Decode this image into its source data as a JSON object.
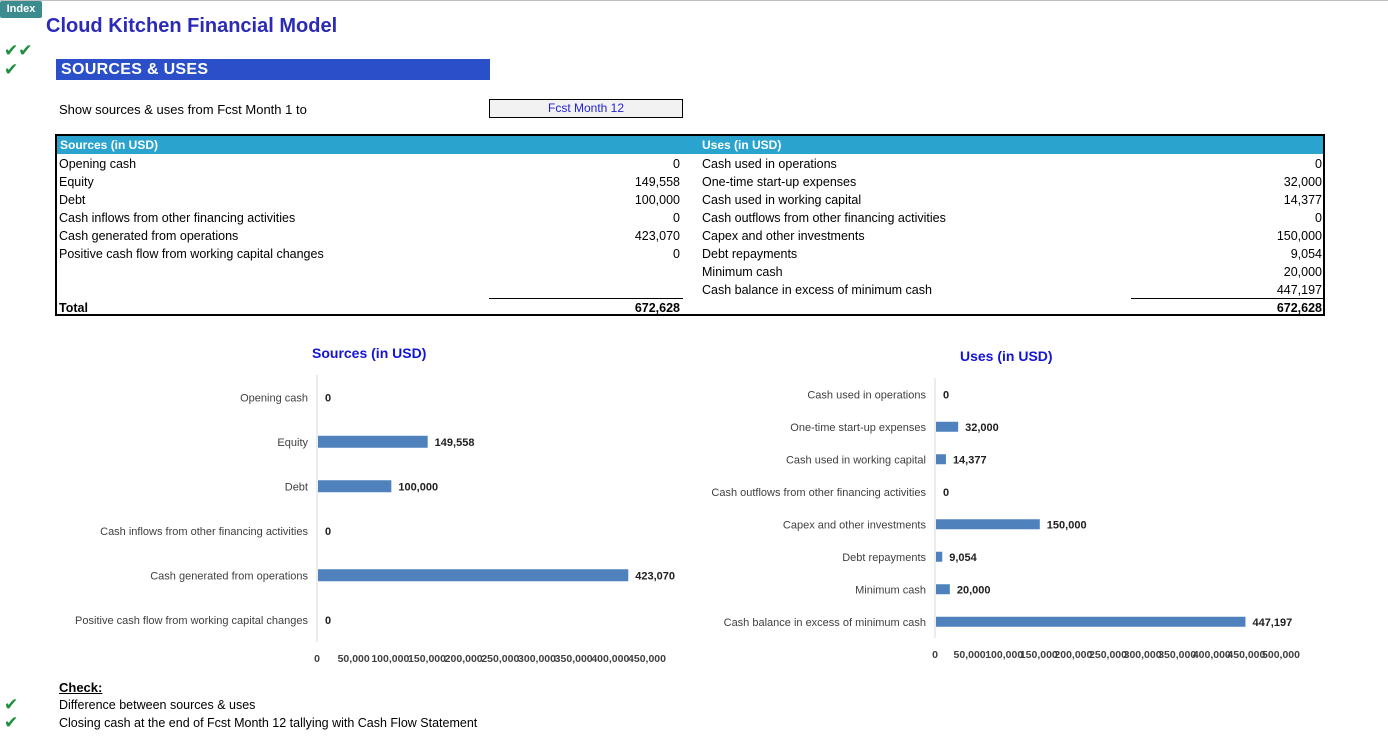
{
  "index_button": "Index",
  "title": "Cloud Kitchen Financial Model",
  "top_checks": [
    "✔✔",
    "✔"
  ],
  "section_title": "SOURCES & USES",
  "period_selector": {
    "label": "Show sources & uses from Fcst Month 1 to",
    "value": "Fcst Month 12"
  },
  "table": {
    "sources_header": "Sources (in USD)",
    "uses_header": "Uses (in USD)",
    "sources": [
      {
        "label": "Opening cash",
        "value": "0"
      },
      {
        "label": "Equity",
        "value": "149,558"
      },
      {
        "label": "Debt",
        "value": "100,000"
      },
      {
        "label": "Cash inflows from other financing activities",
        "value": "0"
      },
      {
        "label": "Cash generated from operations",
        "value": "423,070"
      },
      {
        "label": "Positive cash flow from working capital changes",
        "value": "0"
      }
    ],
    "uses": [
      {
        "label": "Cash used in operations",
        "value": "0"
      },
      {
        "label": "One-time start-up expenses",
        "value": "32,000"
      },
      {
        "label": "Cash used in working capital",
        "value": "14,377"
      },
      {
        "label": "Cash outflows from other  financing activities",
        "value": "0"
      },
      {
        "label": "Capex and other investments",
        "value": "150,000"
      },
      {
        "label": "Debt repayments",
        "value": "9,054"
      },
      {
        "label": "Minimum cash",
        "value": "20,000"
      },
      {
        "label": "Cash balance in excess of minimum cash",
        "value": "447,197"
      }
    ],
    "total_label": "Total",
    "sources_total": "672,628",
    "uses_total": "672,628"
  },
  "chart_data": [
    {
      "type": "bar",
      "orientation": "horizontal",
      "title": "Sources (in USD)",
      "categories": [
        "Opening cash",
        "Equity",
        "Debt",
        "Cash inflows from other financing activities",
        "Cash generated from operations",
        "Positive cash flow from working capital changes"
      ],
      "values": [
        0,
        149558,
        100000,
        0,
        423070,
        0
      ],
      "data_labels": [
        "0",
        "149,558",
        "100,000",
        "0",
        "423,070",
        "0"
      ],
      "xlim": [
        0,
        450000
      ],
      "x_ticks": [
        "0",
        "50,000",
        "100,000",
        "150,000",
        "200,000",
        "250,000",
        "300,000",
        "350,000",
        "400,000",
        "450,000"
      ],
      "grid": false,
      "bar_color": "#4f81bd"
    },
    {
      "type": "bar",
      "orientation": "horizontal",
      "title": "Uses (in USD)",
      "categories": [
        "Cash used in operations",
        "One-time start-up expenses",
        "Cash used in working capital",
        "Cash outflows from other  financing activities",
        "Capex and other investments",
        "Debt repayments",
        "Minimum cash",
        "Cash balance in excess of minimum cash"
      ],
      "values": [
        0,
        32000,
        14377,
        0,
        150000,
        9054,
        20000,
        447197
      ],
      "data_labels": [
        "0",
        "32,000",
        "14,377",
        "0",
        "150,000",
        "9,054",
        "20,000",
        "447,197"
      ],
      "xlim": [
        0,
        500000
      ],
      "x_ticks": [
        "0",
        "50,000",
        "100,000",
        "150,000",
        "200,000",
        "250,000",
        "300,000",
        "350,000",
        "400,000",
        "450,000",
        "500,000"
      ],
      "grid": false,
      "bar_color": "#4f81bd"
    }
  ],
  "checks": {
    "heading": "Check:",
    "items": [
      "Difference between sources & uses",
      "Closing cash at the end of Fcst Month 12 tallying with Cash Flow Statement"
    ]
  },
  "colors": {
    "check_green": "#1e8f3e",
    "section_blue": "#2a4fc9",
    "table_header": "#2aa3cf",
    "title_blue": "#2b2bb8"
  }
}
